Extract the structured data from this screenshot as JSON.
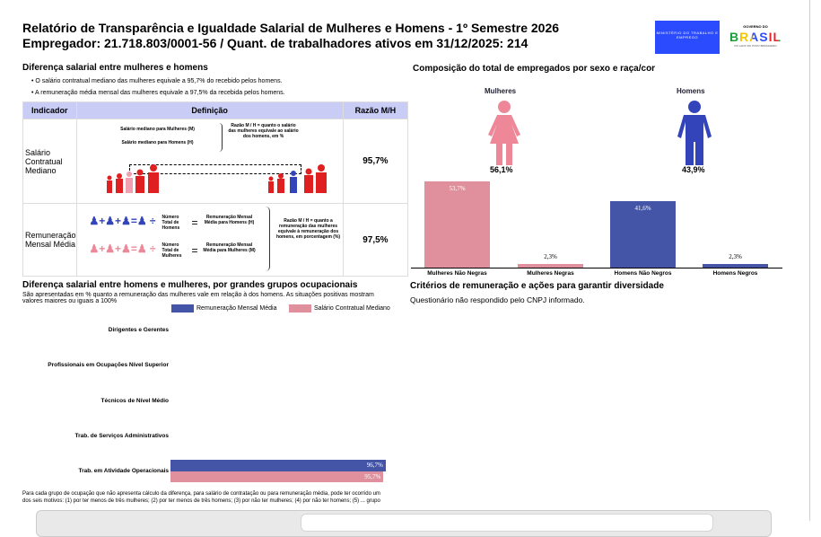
{
  "header": {
    "title_line1": "Relatório de Transparência e Igualdade Salarial de Mulheres e Homens - 1º Semestre 2026",
    "title_line2": "Empregador: 21.718.803/0001-56 / Quant. de trabalhadores ativos em 31/12/2025: 214",
    "logo_ministry": "MINISTÉRIO DO TRABALHO E EMPREGO",
    "logo_gov_top": "GOVERNO DO",
    "logo_gov_main": "BRASIL",
    "logo_gov_slogan": "DO LADO DO POVO BRASILEIRO"
  },
  "salary_diff": {
    "title": "Diferença salarial entre mulheres e homens",
    "bullets": [
      "O salário contratual mediano das mulheres equivale a 95,7% do recebido pelos homens.",
      "A remuneração média mensal das mulheres equivale a 97,5% da recebida pelos homens."
    ],
    "table": {
      "headers": [
        "Indicador",
        "Definição",
        "Razão M/H"
      ],
      "rows": [
        {
          "indicator": "Salário Contratual Mediano",
          "def_a": "Salário mediano para Mulheres (M)",
          "def_b": "Salário mediano para Homens (H)",
          "def_note": "Razão M / H = quanto o salário das mulheres equivale ao salário dos homens, em %",
          "ratio": "95,7%"
        },
        {
          "indicator": "Remuneração Mensal Média",
          "num_h": "Número Total de Homens",
          "res_h": "Remuneração Mensal Média para Homens (H)",
          "num_m": "Número Total de Mulheres",
          "res_m": "Remuneração Mensal Média para Mulheres (M)",
          "def_note": "Razão M / H = quanto a remuneração das mulheres equivale à remuneração dos homens, em porcentagem (%)",
          "ratio": "97,5%"
        }
      ]
    }
  },
  "colors": {
    "women": "#e0909c",
    "men": "#4455a8",
    "women_icon": "#ee8898",
    "men_icon": "#3344bb",
    "red": "#e02020",
    "header_bg": "#c9ccf5"
  },
  "composition": {
    "title": "Composição do total de empregados por sexo e raça/cor",
    "women_label": "Mulheres",
    "men_label": "Homens",
    "women_pct": "56,1%",
    "men_pct": "43,9%"
  },
  "chart_data": [
    {
      "type": "bar",
      "title": "Composição do total de empregados por sexo e raça/cor",
      "categories": [
        "Mulheres Não Negras",
        "Mulheres Negras",
        "Homens Não Negros",
        "Homens Negros"
      ],
      "values": [
        53.7,
        2.3,
        41.6,
        2.3
      ],
      "labels": [
        "53,7%",
        "2,3%",
        "41,6%",
        "2,3%"
      ],
      "colors": [
        "#e0909c",
        "#e0909c",
        "#4455a8",
        "#4455a8"
      ],
      "ylim": [
        0,
        55
      ]
    },
    {
      "type": "bar",
      "orientation": "horizontal",
      "title": "Diferença salarial entre homens e mulheres, por grandes grupos ocupacionais",
      "subtitle": "São apresentadas em % quanto a remuneração das mulheres vale em relação à dos homens. As situações positivas mostram valores maiores ou iguais a 100%",
      "categories": [
        "Dirigentes e Gerentes",
        "Profissionais em Ocupações Nível Superior",
        "Técnicos de Nível Médio",
        "Trab. de Serviços Administrativos",
        "Trab. em Atividade Operacionais"
      ],
      "series": [
        {
          "name": "Remuneração Mensal Média",
          "color": "#4455a8",
          "values": [
            null,
            null,
            null,
            null,
            96.7
          ],
          "labels": [
            "",
            "",
            "",
            "",
            "96,7%"
          ]
        },
        {
          "name": "Salário Contratual Mediano",
          "color": "#e0909c",
          "values": [
            null,
            null,
            null,
            null,
            95.7
          ],
          "labels": [
            "",
            "",
            "",
            "",
            "95,7%"
          ]
        }
      ],
      "xlim": [
        0,
        100
      ]
    }
  ],
  "occupational": {
    "footnote": "Para cada grupo de ocupação que não apresenta cálculo da diferença, para salário de contratação ou para remuneração média, pode ter ocorrido um dos seis motivos: (1) por ter menos de três mulheres; (2) por ter menos de três homens; (3) por não ter mulheres; (4) por não ter homens; (5) ... grupo"
  },
  "criteria": {
    "title": "Critérios de remuneração e ações para garantir diversidade",
    "text": "Questionário não respondido pelo CNPJ informado."
  }
}
